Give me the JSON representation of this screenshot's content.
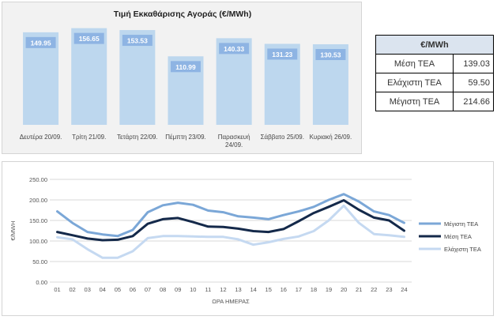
{
  "chart_data": [
    {
      "type": "bar",
      "title": "Τιμή Εκκαθάρισης Αγοράς (€/MWh)",
      "categories": [
        "Δευτέρα 20/09.",
        "Τρίτη 21/09.",
        "Τετάρτη 22/09.",
        "Πέμπτη 23/09.",
        "Παρασκευή 24/09.",
        "Σάββατο 25/09.",
        "Κυριακή 26/09."
      ],
      "values": [
        149.95,
        156.65,
        153.53,
        110.99,
        140.33,
        131.23,
        130.53
      ],
      "value_labels": [
        "149.95",
        "156.65",
        "153.53",
        "110.99",
        "140.33",
        "131.23",
        "130.53"
      ],
      "bar_color": "#bdd7ee",
      "label_color": "#8eb4e3",
      "grid": false
    },
    {
      "type": "line",
      "xlabel": "ΩΡΑ ΗΜΕΡΑΣ",
      "ylabel": "€/MWH",
      "ylim": [
        0,
        250
      ],
      "yticks": [
        "0.00",
        "50.00",
        "100.00",
        "150.00",
        "200.00",
        "250.00"
      ],
      "x": [
        "01",
        "02",
        "03",
        "04",
        "05",
        "06",
        "07",
        "08",
        "09",
        "10",
        "11",
        "12",
        "13",
        "14",
        "15",
        "16",
        "17",
        "18",
        "19",
        "20",
        "21",
        "22",
        "23",
        "24"
      ],
      "grid": true,
      "legend": "right",
      "series": [
        {
          "name": "Μέγιστη ΤΕΑ",
          "color": "#7ba7d7",
          "values": [
            172,
            144,
            122,
            116,
            112,
            127,
            170,
            187,
            193,
            188,
            174,
            170,
            160,
            157,
            153,
            163,
            172,
            183,
            200,
            214,
            196,
            172,
            163,
            144
          ]
        },
        {
          "name": "Μέση ΤΕΑ",
          "color": "#14294a",
          "values": [
            122,
            114,
            106,
            102,
            103,
            112,
            142,
            153,
            156,
            146,
            135,
            134,
            130,
            124,
            122,
            129,
            148,
            168,
            183,
            199,
            176,
            157,
            150,
            125
          ]
        },
        {
          "name": "Ελάχιστη ΤΕΑ",
          "color": "#c5d9f1",
          "values": [
            109,
            104,
            80,
            59,
            59,
            75,
            107,
            112,
            112,
            111,
            110,
            110,
            104,
            91,
            97,
            105,
            111,
            124,
            150,
            186,
            144,
            117,
            114,
            110
          ]
        }
      ]
    }
  ],
  "table": {
    "header": "€/MWh",
    "rows": [
      {
        "label": "Μέση ΤΕΑ",
        "value": "139.03"
      },
      {
        "label": "Ελάχιστη ΤΕΑ",
        "value": "59.50"
      },
      {
        "label": "Μέγιστη ΤΕΑ",
        "value": "214.66"
      }
    ]
  }
}
